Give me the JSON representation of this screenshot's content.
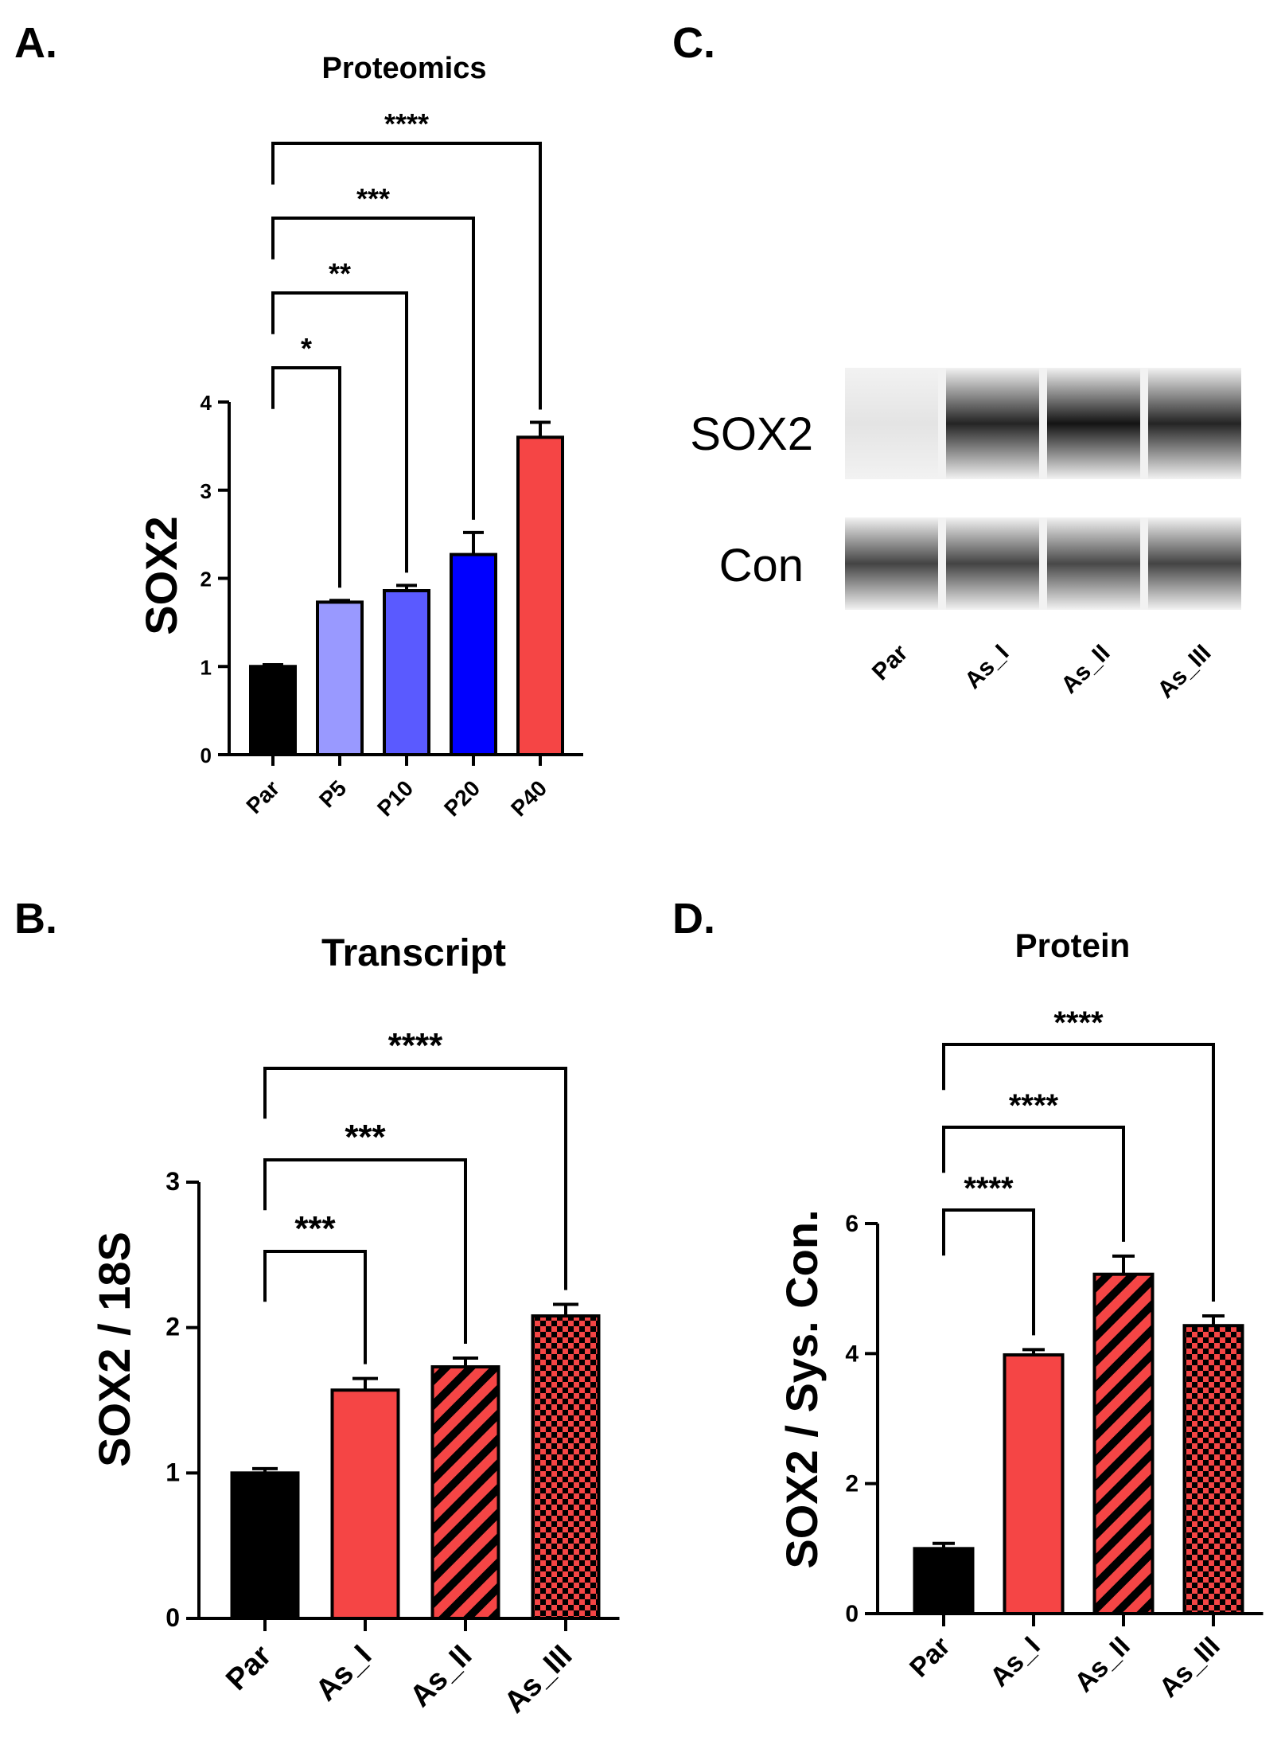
{
  "panels": {
    "A": {
      "letter": "A."
    },
    "B": {
      "letter": "B."
    },
    "C": {
      "letter": "C."
    },
    "D": {
      "letter": "D."
    }
  },
  "colors": {
    "black": "#000000",
    "red": "#f54545",
    "p5": "#9999ff",
    "p10": "#5a5aff",
    "p20": "#0000ff",
    "outline": "#000000"
  },
  "chart_data": [
    {
      "id": "A",
      "type": "bar",
      "title": "Proteomics",
      "ylabel": "SOX2",
      "xlabel": "",
      "ylim": [
        0,
        4
      ],
      "yticks": [
        0,
        1,
        2,
        3,
        4
      ],
      "categories": [
        "Par",
        "P5",
        "P10",
        "P20",
        "P40"
      ],
      "values": [
        1.0,
        1.73,
        1.86,
        2.27,
        3.6
      ],
      "errors": [
        0.02,
        0.02,
        0.06,
        0.25,
        0.17
      ],
      "bar_colors": [
        "#000000",
        "#9999ff",
        "#5a5aff",
        "#0000ff",
        "#f54545"
      ],
      "patterns": [
        "solid",
        "solid",
        "solid",
        "solid",
        "solid"
      ],
      "significance": [
        {
          "from": "Par",
          "to": "P5",
          "label": "*"
        },
        {
          "from": "Par",
          "to": "P10",
          "label": "**"
        },
        {
          "from": "Par",
          "to": "P20",
          "label": "***"
        },
        {
          "from": "Par",
          "to": "P40",
          "label": "****"
        }
      ]
    },
    {
      "id": "B",
      "type": "bar",
      "title": "Transcript",
      "ylabel": "SOX2 / 18S",
      "xlabel": "",
      "ylim": [
        0,
        3
      ],
      "yticks": [
        0,
        1,
        2,
        3
      ],
      "categories": [
        "Par",
        "As_I",
        "As_II",
        "As_III"
      ],
      "values": [
        1.0,
        1.57,
        1.73,
        2.08
      ],
      "errors": [
        0.03,
        0.08,
        0.06,
        0.08
      ],
      "bar_colors": [
        "#000000",
        "#f54545",
        "#f54545",
        "#f54545"
      ],
      "patterns": [
        "solid",
        "solid",
        "stripes",
        "checker"
      ],
      "significance": [
        {
          "from": "Par",
          "to": "As_I",
          "label": "***"
        },
        {
          "from": "Par",
          "to": "As_II",
          "label": "***"
        },
        {
          "from": "Par",
          "to": "As_III",
          "label": "****"
        }
      ]
    },
    {
      "id": "D",
      "type": "bar",
      "title": "Protein",
      "ylabel": "SOX2 / Sys. Con.",
      "xlabel": "",
      "ylim": [
        0,
        6
      ],
      "yticks": [
        0,
        2,
        4,
        6
      ],
      "categories": [
        "Par",
        "As_I",
        "As_II",
        "As_III"
      ],
      "values": [
        1.0,
        3.98,
        5.22,
        4.43
      ],
      "errors": [
        0.08,
        0.08,
        0.28,
        0.15
      ],
      "bar_colors": [
        "#000000",
        "#f54545",
        "#f54545",
        "#f54545"
      ],
      "patterns": [
        "solid",
        "solid",
        "stripes",
        "checker"
      ],
      "significance": [
        {
          "from": "Par",
          "to": "As_I",
          "label": "****"
        },
        {
          "from": "Par",
          "to": "As_II",
          "label": "****"
        },
        {
          "from": "Par",
          "to": "As_III",
          "label": "****"
        }
      ]
    }
  ],
  "blot": {
    "rows": [
      {
        "label": "SOX2",
        "intensities": [
          0.06,
          0.85,
          0.92,
          0.85
        ]
      },
      {
        "label": "Con",
        "intensities": [
          0.72,
          0.72,
          0.7,
          0.72
        ]
      }
    ],
    "lanes": [
      "Par",
      "As_I",
      "As_II",
      "As_III"
    ]
  }
}
